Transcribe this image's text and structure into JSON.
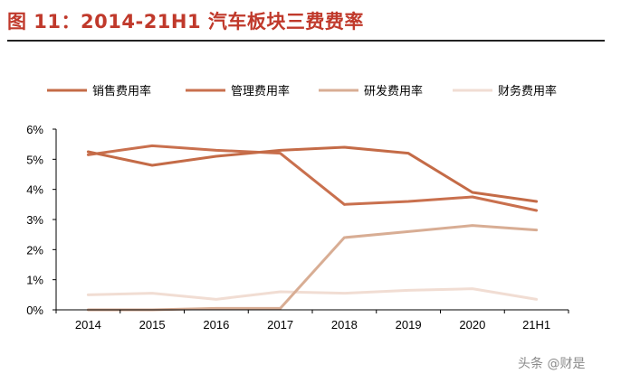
{
  "figure": {
    "title": "图 11：2014-21H1 汽车板块三费费率"
  },
  "watermark": "头条 @财是",
  "colors": {
    "title": "#c0392b",
    "sales": "#c46b47",
    "management": "#c9704e",
    "rd": "#d8ad94",
    "finance": "#f1ddd3",
    "axis": "#000000"
  },
  "chart_data": {
    "type": "line",
    "categories": [
      "2014",
      "2015",
      "2016",
      "2017",
      "2018",
      "2019",
      "2020",
      "21H1"
    ],
    "ylim": [
      0,
      6
    ],
    "yticks": [
      "0%",
      "1%",
      "2%",
      "3%",
      "4%",
      "5%",
      "6%"
    ],
    "ytick_values": [
      0,
      1,
      2,
      3,
      4,
      5,
      6
    ],
    "legend_position": "top",
    "grid": false,
    "series": [
      {
        "name": "销售费用率",
        "color": "#c46b47",
        "values": [
          5.25,
          4.8,
          5.1,
          5.3,
          5.4,
          5.2,
          3.9,
          3.6
        ]
      },
      {
        "name": "管理费用率",
        "color": "#c9704e",
        "values": [
          5.15,
          5.45,
          5.3,
          5.2,
          3.5,
          3.6,
          3.75,
          3.3
        ]
      },
      {
        "name": "研发费用率",
        "color": "#d8ad94",
        "values": [
          0.0,
          0.0,
          0.05,
          0.05,
          2.4,
          2.6,
          2.8,
          2.65
        ]
      },
      {
        "name": "财务费用率",
        "color": "#f1ddd3",
        "values": [
          0.5,
          0.55,
          0.35,
          0.6,
          0.55,
          0.65,
          0.7,
          0.35
        ]
      }
    ]
  }
}
